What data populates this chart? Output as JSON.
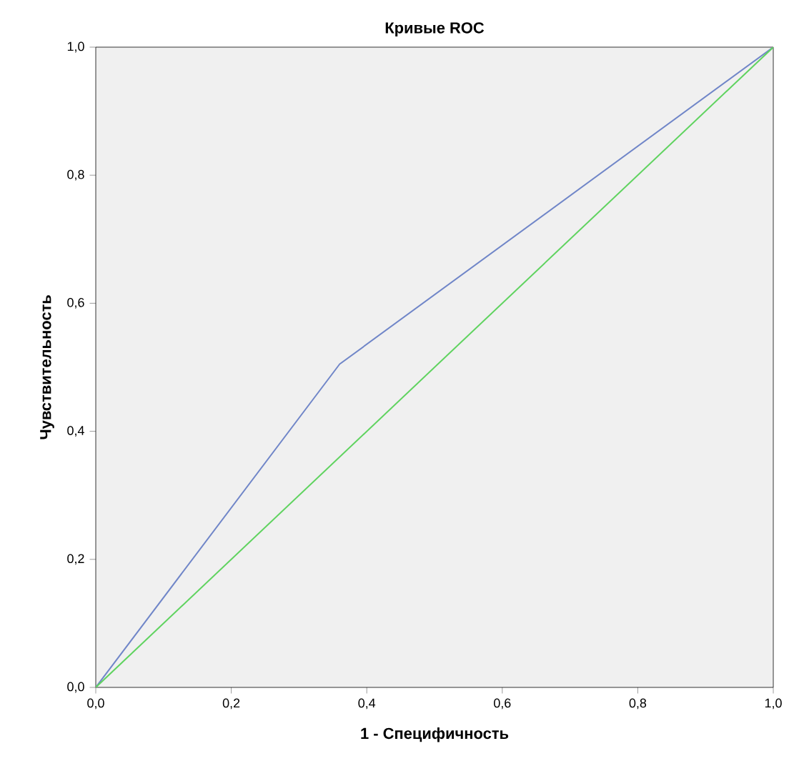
{
  "chart_data": {
    "type": "line",
    "title": "Кривые ROC",
    "xlabel": "1 - Специфичность",
    "ylabel": "Чувствительность",
    "xlim": [
      0,
      1
    ],
    "ylim": [
      0,
      1
    ],
    "xticks": [
      {
        "value": 0,
        "label": "0,0"
      },
      {
        "value": 0.2,
        "label": "0,2"
      },
      {
        "value": 0.4,
        "label": "0,4"
      },
      {
        "value": 0.6,
        "label": "0,6"
      },
      {
        "value": 0.8,
        "label": "0,8"
      },
      {
        "value": 1,
        "label": "1,0"
      }
    ],
    "yticks": [
      {
        "value": 0,
        "label": "0,0"
      },
      {
        "value": 0.2,
        "label": "0,2"
      },
      {
        "value": 0.4,
        "label": "0,4"
      },
      {
        "value": 0.6,
        "label": "0,6"
      },
      {
        "value": 0.8,
        "label": "0,8"
      },
      {
        "value": 1,
        "label": "1,0"
      }
    ],
    "series": [
      {
        "color": "#7086c8",
        "x": [
          0,
          0.36,
          1
        ],
        "values": [
          0,
          0.505,
          1
        ]
      },
      {
        "color": "#5fd35f",
        "x": [
          0,
          1
        ],
        "values": [
          0,
          1
        ]
      }
    ]
  }
}
